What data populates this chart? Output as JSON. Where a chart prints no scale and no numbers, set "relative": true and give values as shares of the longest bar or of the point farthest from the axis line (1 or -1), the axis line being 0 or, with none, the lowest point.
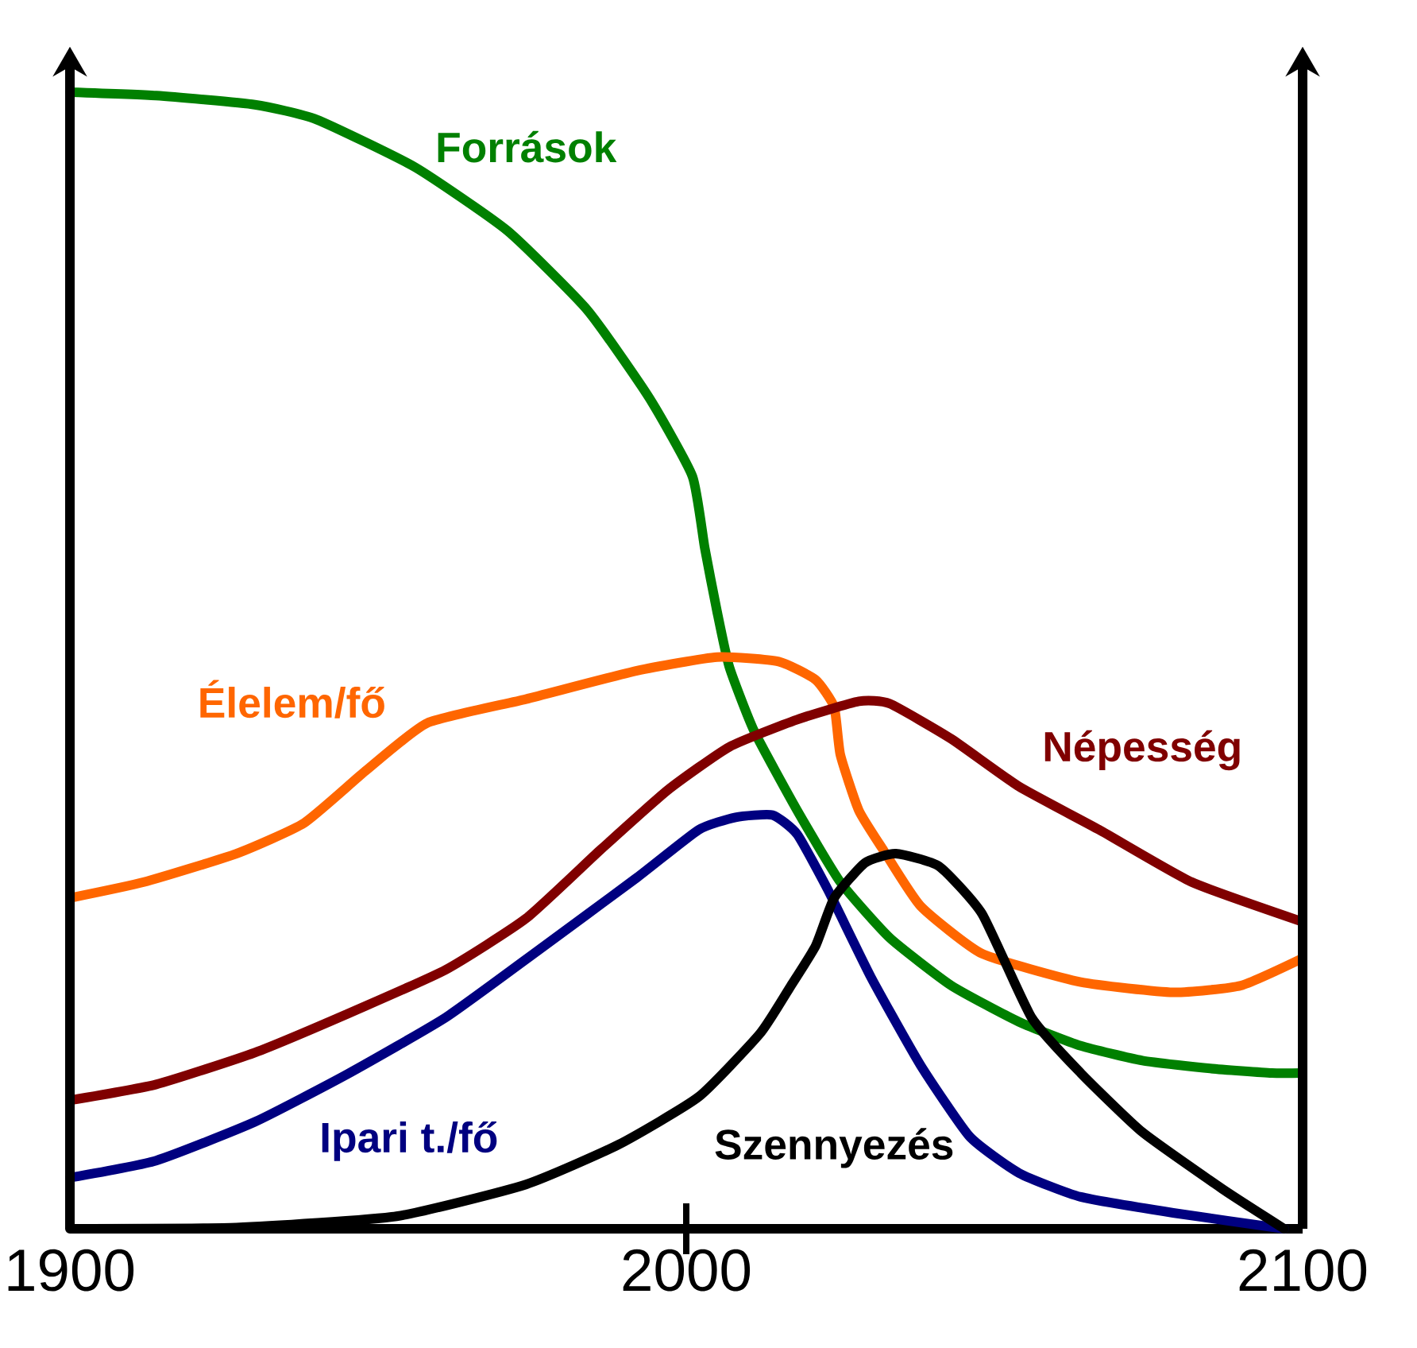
{
  "chart_data": {
    "type": "line",
    "relative": true,
    "xlim": [
      1900,
      2100
    ],
    "xticks": [
      1900,
      2000,
      2100
    ],
    "series": [
      {
        "name": "Források",
        "color": "#008000",
        "x": [
          1900,
          1914,
          1930,
          1940,
          1956,
          1971,
          1984,
          1994,
          2001,
          2003,
          2005,
          2007,
          2011,
          2018,
          2025,
          2033,
          2043,
          2054,
          2064,
          2074,
          2085,
          2095,
          2100
        ],
        "values": [
          1.0,
          0.997,
          0.989,
          0.976,
          0.934,
          0.878,
          0.808,
          0.731,
          0.662,
          0.599,
          0.543,
          0.494,
          0.438,
          0.368,
          0.305,
          0.256,
          0.214,
          0.182,
          0.161,
          0.148,
          0.141,
          0.137,
          0.137
        ]
      },
      {
        "name": "Élelem/fő",
        "color": "#ff6600",
        "x": [
          1900,
          1912,
          1927,
          1938,
          1948,
          1958,
          1974,
          1992,
          2005,
          2015,
          2021,
          2024,
          2025,
          2028,
          2032,
          2038,
          2048,
          2064,
          2079,
          2090,
          2100
        ],
        "values": [
          0.291,
          0.305,
          0.33,
          0.357,
          0.403,
          0.445,
          0.466,
          0.491,
          0.503,
          0.499,
          0.483,
          0.459,
          0.417,
          0.368,
          0.333,
          0.284,
          0.242,
          0.217,
          0.208,
          0.214,
          0.238
        ]
      },
      {
        "name": "Népesség",
        "color": "#800000",
        "x": [
          1900,
          1914,
          1930,
          1945,
          1961,
          1974,
          1986,
          1997,
          2007,
          2018,
          2028,
          2033,
          2043,
          2054,
          2067,
          2082,
          2100
        ],
        "values": [
          0.113,
          0.127,
          0.155,
          0.189,
          0.228,
          0.273,
          0.333,
          0.386,
          0.424,
          0.448,
          0.464,
          0.462,
          0.431,
          0.389,
          0.351,
          0.305,
          0.27
        ]
      },
      {
        "name": "Ipari t./fő",
        "color": "#000080",
        "x": [
          1900,
          1914,
          1930,
          1945,
          1961,
          1976,
          1992,
          2002,
          2008,
          2014,
          2018,
          2023,
          2030,
          2038,
          2046,
          2054,
          2064,
          2079,
          2097
        ],
        "values": [
          0.045,
          0.06,
          0.094,
          0.136,
          0.186,
          0.245,
          0.309,
          0.351,
          0.362,
          0.364,
          0.347,
          0.298,
          0.221,
          0.144,
          0.081,
          0.049,
          0.028,
          0.014,
          0.0
        ]
      },
      {
        "name": "Szennyezés",
        "color": "#000000",
        "x": [
          1900,
          1927,
          1953,
          1974,
          1989,
          2002,
          2012,
          2017,
          2021,
          2024,
          2029,
          2034,
          2041,
          2048,
          2056,
          2064,
          2074,
          2087,
          2097
        ],
        "values": [
          0.0,
          0.001,
          0.011,
          0.039,
          0.074,
          0.116,
          0.172,
          0.214,
          0.249,
          0.291,
          0.322,
          0.33,
          0.319,
          0.277,
          0.186,
          0.137,
          0.085,
          0.035,
          0.0
        ]
      }
    ]
  }
}
